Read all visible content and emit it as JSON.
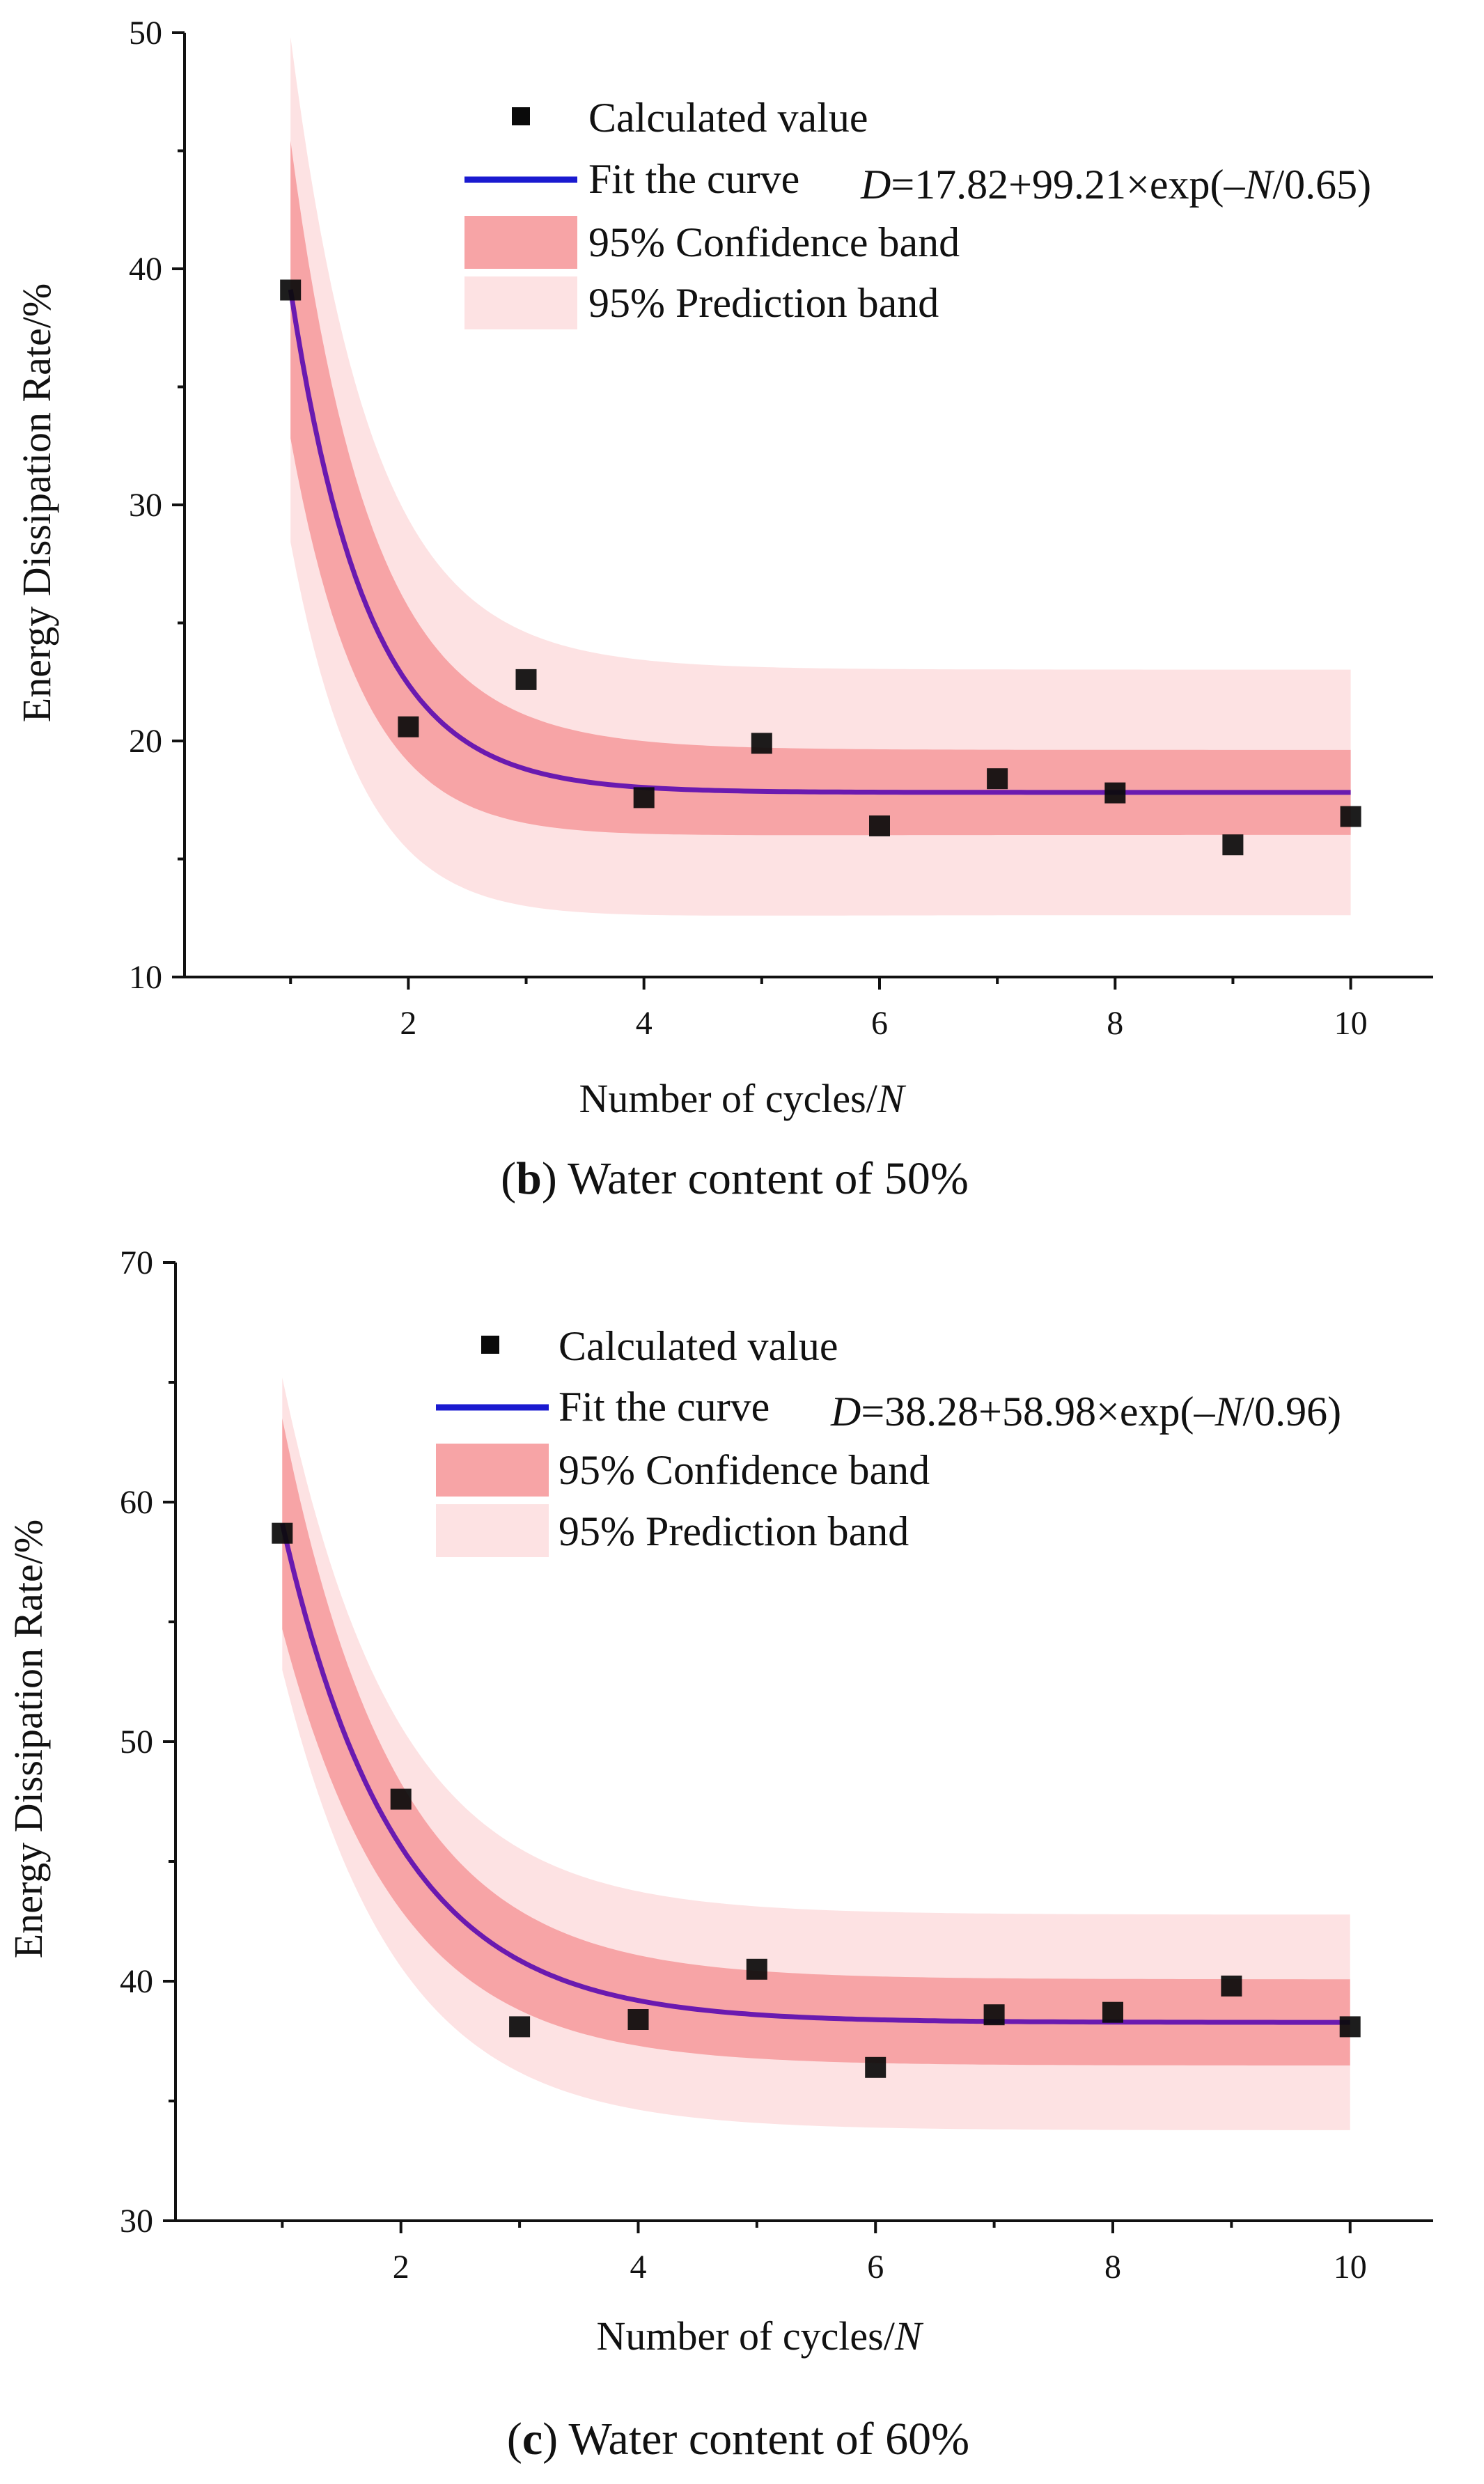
{
  "chart_data": [
    {
      "type": "scatter",
      "panel_label": "b",
      "caption": "Water content of 50%",
      "xlabel": "Number of cycles/",
      "xlabel_var": "N",
      "ylabel": "Energy Dissipation Rate/%",
      "xlim": [
        0.1,
        10.7
      ],
      "ylim": [
        10,
        50
      ],
      "xticks": [
        2,
        4,
        6,
        8,
        10
      ],
      "xminor": [
        1,
        3,
        5,
        7,
        9
      ],
      "yticks": [
        10,
        20,
        30,
        40,
        50
      ],
      "legend_position": "top-right",
      "grid": false,
      "fit": {
        "a": 17.82,
        "b": 99.21,
        "tau": 0.65,
        "ci_half": 1.8,
        "pi_half": 5.2,
        "ci_widen": 4.5,
        "pi_widen": 5.5
      },
      "legend": {
        "calculated": "Calculated value",
        "fit_label": "Fit the curve",
        "fit_eq_var": "D",
        "fit_eq_mid": "=17.82+99.21×exp(–",
        "fit_eq_var2": "N",
        "fit_eq_end": "/0.65)",
        "confidence": "95% Confidence band",
        "prediction": "95% Prediction band"
      },
      "series": [
        {
          "name": "Calculated value",
          "x": [
            1,
            2,
            3,
            4,
            5,
            6,
            7,
            8,
            9,
            10
          ],
          "y": [
            39.1,
            20.6,
            22.6,
            17.6,
            19.9,
            16.4,
            18.4,
            17.8,
            15.6,
            16.8
          ]
        }
      ]
    },
    {
      "type": "scatter",
      "panel_label": "c",
      "caption": "Water content of 60%",
      "xlabel": "Number of cycles/",
      "xlabel_var": "N",
      "ylabel": "Energy Dissipation Rate/%",
      "xlim": [
        0.1,
        10.7
      ],
      "ylim": [
        30,
        70
      ],
      "xticks": [
        2,
        4,
        6,
        8,
        10
      ],
      "xminor": [
        1,
        3,
        5,
        7,
        9
      ],
      "yticks": [
        30,
        40,
        50,
        60,
        70
      ],
      "legend_position": "top-right",
      "grid": false,
      "fit": {
        "a": 38.28,
        "b": 58.98,
        "tau": 0.96,
        "ci_half": 1.8,
        "pi_half": 4.5,
        "ci_widen": 2.6,
        "pi_widen": 1.6
      },
      "legend": {
        "calculated": "Calculated value",
        "fit_label": "Fit the curve",
        "fit_eq_var": "D",
        "fit_eq_mid": "=38.28+58.98×exp(–",
        "fit_eq_var2": "N",
        "fit_eq_end": "/0.96)",
        "confidence": "95% Confidence band",
        "prediction": "95% Prediction band"
      },
      "series": [
        {
          "name": "Calculated value",
          "x": [
            1,
            2,
            3,
            4,
            5,
            6,
            7,
            8,
            9,
            10
          ],
          "y": [
            58.7,
            47.6,
            38.1,
            38.4,
            40.5,
            36.4,
            38.6,
            38.7,
            39.8,
            38.1
          ]
        }
      ]
    }
  ],
  "colors": {
    "marker": "#0a0a0a",
    "fit_line": "#6a1ab0",
    "legend_line": "#1a1ad0",
    "confidence": "#f7a4a6",
    "prediction": "#fde2e3",
    "axis": "#111111"
  }
}
